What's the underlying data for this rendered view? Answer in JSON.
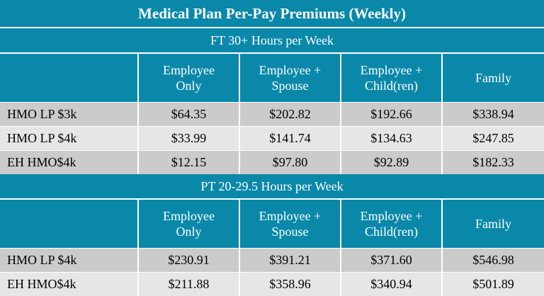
{
  "title": "Medical Plan Per-Pay Premiums (Weekly)",
  "columns": [
    "Employee\nOnly",
    "Employee +\nSpouse",
    "Employee +\nChild(ren)",
    "Family"
  ],
  "sections": [
    {
      "label": "FT 30+ Hours per Week",
      "rows": [
        {
          "plan": "HMO LP $3k",
          "values": [
            "$64.35",
            "$202.82",
            "$192.66",
            "$338.94"
          ]
        },
        {
          "plan": "HMO LP $4k",
          "values": [
            "$33.99",
            "$141.74",
            "$134.63",
            "$247.85"
          ]
        },
        {
          "plan": "EH HMO$4k",
          "values": [
            "$12.15",
            "$97.80",
            "$92.89",
            "$182.33"
          ]
        }
      ]
    },
    {
      "label": "PT 20-29.5 Hours per Week",
      "rows": [
        {
          "plan": "HMO LP $4k",
          "values": [
            "$230.91",
            "$391.21",
            "$371.60",
            "$546.98"
          ]
        },
        {
          "plan": "EH HMO$4k",
          "values": [
            "$211.88",
            "$358.96",
            "$340.94",
            "$501.89"
          ]
        }
      ]
    }
  ],
  "colors": {
    "header": "#0a88aa",
    "row_dark": "#cbcbcb",
    "row_light": "#e6e6e6"
  }
}
